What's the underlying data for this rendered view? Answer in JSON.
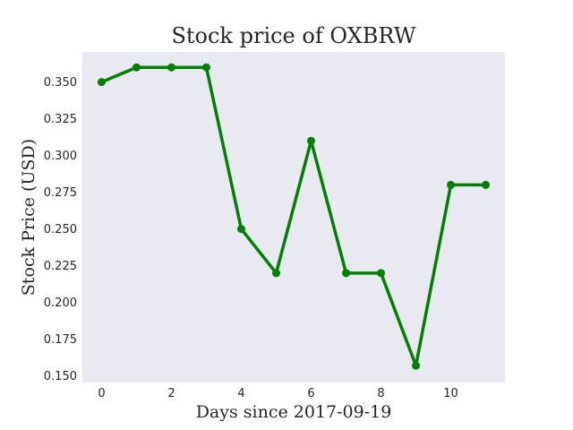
{
  "colors": {
    "plot_background": "#e9e9f1",
    "line": "#008000",
    "page_background": "#ffffff"
  },
  "chart_data": {
    "type": "line",
    "title": "Stock price of OXBRW",
    "xlabel": "Days since 2017-09-19",
    "ylabel": "Stock Price (USD)",
    "xlim": [
      -0.55,
      11.55
    ],
    "ylim": [
      0.1455,
      0.3705
    ],
    "grid": false,
    "x_ticks": [
      0,
      2,
      4,
      6,
      8,
      10
    ],
    "x_tick_labels": [
      "0",
      "2",
      "4",
      "6",
      "8",
      "10"
    ],
    "y_ticks": [
      0.15,
      0.175,
      0.2,
      0.225,
      0.25,
      0.275,
      0.3,
      0.325,
      0.35
    ],
    "y_tick_labels": [
      "0.150",
      "0.175",
      "0.200",
      "0.225",
      "0.250",
      "0.275",
      "0.300",
      "0.325",
      "0.350"
    ],
    "series": [
      {
        "x": [
          0,
          1,
          2,
          3,
          4,
          5,
          6,
          7,
          8,
          9,
          10,
          11
        ],
        "values": [
          0.35,
          0.36,
          0.36,
          0.36,
          0.25,
          0.22,
          0.31,
          0.22,
          0.22,
          0.157,
          0.28,
          0.28
        ],
        "marker": "circle"
      }
    ]
  }
}
